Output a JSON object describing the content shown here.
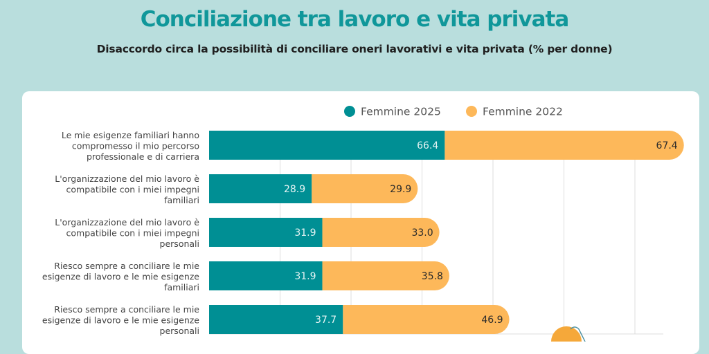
{
  "header": {
    "title": "Conciliazione tra lavoro e vita privata",
    "subtitle": "Disaccordo circa la possibilità di conciliare oneri lavorativi e vita privata (% per donne)"
  },
  "colors": {
    "background": "#b9dedd",
    "title": "#10979a",
    "series_2025": "#008f94",
    "series_2022": "#fdb85a",
    "gridline": "#dcdcdc"
  },
  "chart_data": {
    "type": "bar",
    "orientation": "horizontal",
    "stacked": true,
    "title": "Conciliazione tra lavoro e vita privata",
    "subtitle": "Disaccordo circa la possibilità di conciliare oneri lavorativi e vita privata (% per donne)",
    "xlabel": "",
    "ylabel": "",
    "xlim": [
      0,
      130
    ],
    "grid": true,
    "grid_step": 20,
    "legend_position": "top",
    "categories": [
      [
        "Le mie esigenze familiari hanno",
        "compromesso il  mio percorso",
        "professionale e di carriera"
      ],
      [
        "L'organizzazione del mio lavoro è",
        "compatibile con i miei impegni",
        "familiari"
      ],
      [
        "L'organizzazione del mio lavoro è",
        "compatibile con i miei impegni",
        "personali"
      ],
      [
        "Riesco sempre a conciliare le mie",
        "esigenze di lavoro e le mie esigenze",
        "familiari"
      ],
      [
        "Riesco sempre a conciliare le mie",
        "esigenze di lavoro e le mie esigenze",
        "personali"
      ]
    ],
    "series": [
      {
        "name": "Femmine 2025",
        "color": "#008f94",
        "label_color": "#e6f4f4",
        "values": [
          66.4,
          28.9,
          31.9,
          31.9,
          37.7
        ],
        "labels": [
          "66.4",
          "28.9",
          "31.9",
          "31.9",
          "37.7"
        ]
      },
      {
        "name": "Femmine 2022",
        "color": "#fdb85a",
        "label_color": "#2a2a2a",
        "values": [
          67.4,
          29.9,
          33.0,
          35.8,
          46.9
        ],
        "labels": [
          "67.4",
          "29.9",
          "33.0",
          "35.8",
          "46.9"
        ]
      }
    ]
  }
}
